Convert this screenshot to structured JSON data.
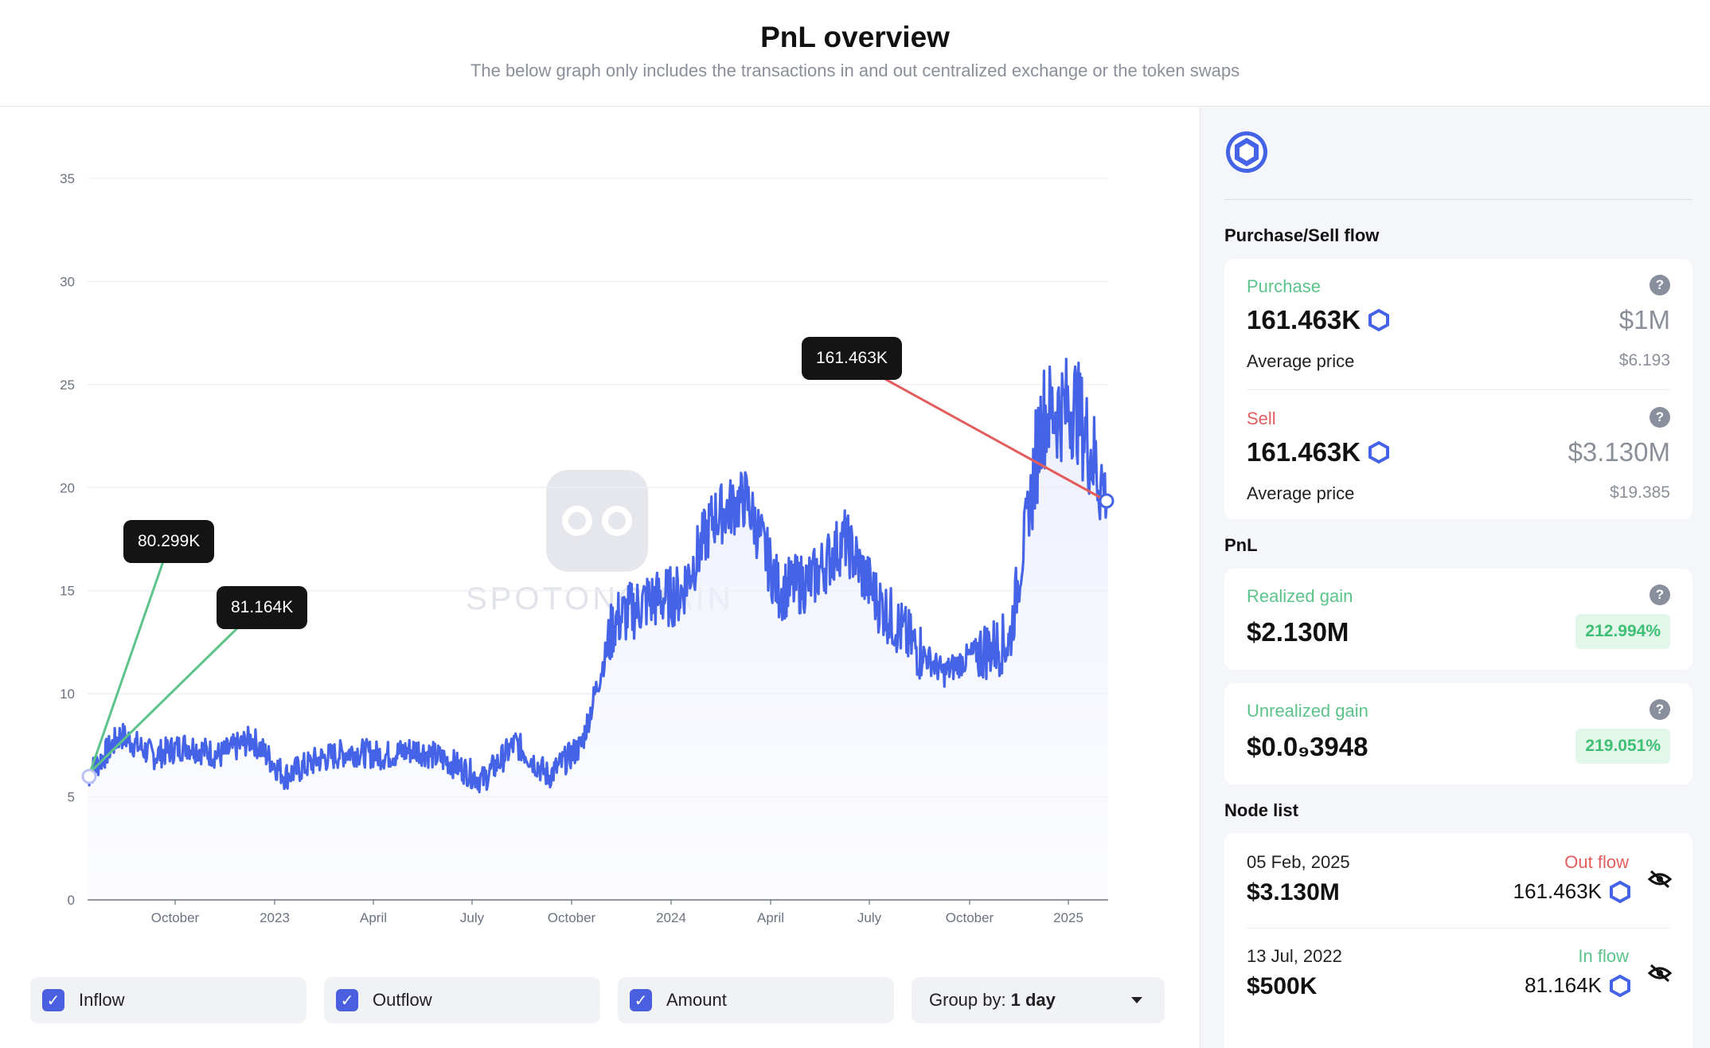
{
  "header": {
    "title": "PnL overview",
    "subtitle": "The below graph only includes the transactions in and out centralized exchange or the token swaps"
  },
  "watermark": {
    "text": "SPOTONCHAIN"
  },
  "chart_data": {
    "type": "area",
    "y_ticks": [
      "0",
      "5",
      "10",
      "15",
      "20",
      "25",
      "30",
      "35"
    ],
    "ylim": [
      0,
      35
    ],
    "x_ticks": [
      "October",
      "2023",
      "April",
      "July",
      "October",
      "2024",
      "April",
      "July",
      "October",
      "2025"
    ],
    "series": [
      {
        "color": "#4563e6",
        "x": [
          "2022-07",
          "2022-08",
          "2022-09",
          "2022-10",
          "2022-11",
          "2022-12",
          "2023-01",
          "2023-02",
          "2023-03",
          "2023-04",
          "2023-05",
          "2023-06",
          "2023-07",
          "2023-08",
          "2023-09",
          "2023-10",
          "2023-11",
          "2023-12",
          "2024-01",
          "2024-02",
          "2024-03",
          "2024-04",
          "2024-05",
          "2024-06",
          "2024-07",
          "2024-08",
          "2024-09",
          "2024-10",
          "2024-11",
          "2024-12",
          "2025-01",
          "2025-02"
        ],
        "values": [
          6.0,
          8.0,
          7.0,
          7.5,
          7.0,
          7.8,
          6.0,
          6.8,
          7.2,
          7.0,
          7.3,
          6.7,
          5.8,
          7.6,
          6.0,
          7.5,
          13.5,
          14.5,
          14.8,
          18.5,
          19.5,
          15.0,
          15.5,
          17.5,
          14.5,
          12.5,
          11.0,
          12.0,
          12.5,
          23.5,
          24.0,
          19.3
        ]
      }
    ],
    "annotations": [
      {
        "label": "80.299K",
        "type": "inflow"
      },
      {
        "label": "81.164K",
        "type": "inflow"
      },
      {
        "label": "161.463K",
        "type": "outflow"
      }
    ]
  },
  "controls": {
    "inflow_label": "Inflow",
    "outflow_label": "Outflow",
    "amount_label": "Amount",
    "group_prefix": "Group by:",
    "group_value": "1 day"
  },
  "sidebar": {
    "flow_title": "Purchase/Sell flow",
    "purchase": {
      "label": "Purchase",
      "amount": "161.463K",
      "usd": "$1M",
      "avg_label": "Average price",
      "avg_value": "$6.193"
    },
    "sell": {
      "label": "Sell",
      "amount": "161.463K",
      "usd": "$3.130M",
      "avg_label": "Average price",
      "avg_value": "$19.385"
    },
    "pnl_title": "PnL",
    "realized": {
      "label": "Realized gain",
      "value": "$2.130M",
      "pct": "212.994%"
    },
    "unrealized": {
      "label": "Unrealized gain",
      "value": "$0.0₉3948",
      "pct": "219.051%"
    },
    "node_title": "Node list",
    "nodes": [
      {
        "date": "05 Feb, 2025",
        "amount": "$3.130M",
        "flow": "Out flow",
        "tokens": "161.463K"
      },
      {
        "date": "13 Jul, 2022",
        "amount": "$500K",
        "flow": "In flow",
        "tokens": "81.164K"
      }
    ]
  },
  "colors": {
    "accent": "#4563e6",
    "inflow": "#5cc38a",
    "outflow": "#e35d5d"
  }
}
